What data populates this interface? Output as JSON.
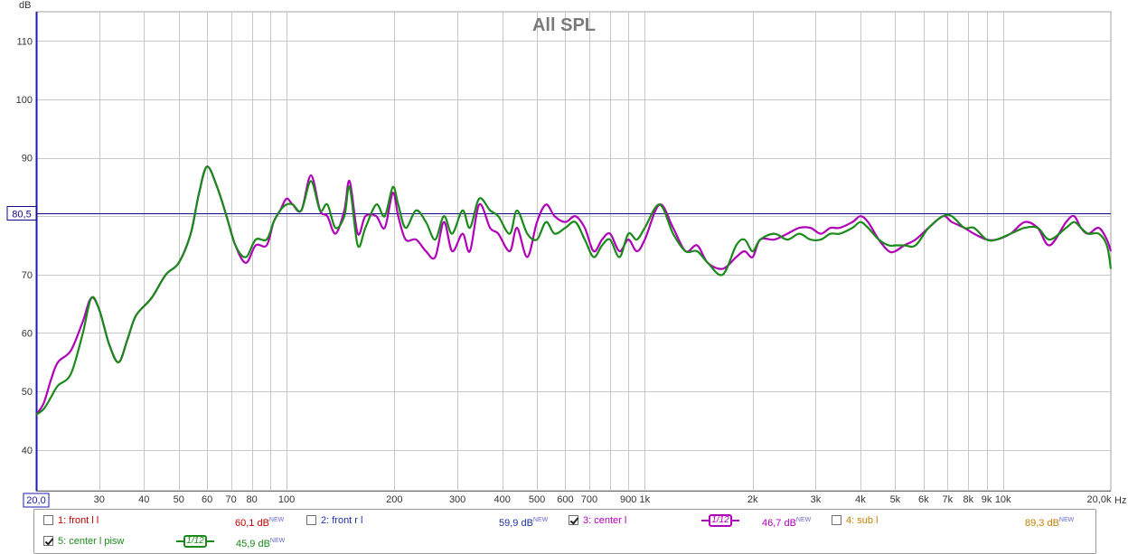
{
  "chart_data": {
    "type": "line",
    "title": "All SPL",
    "ylabel": "dB",
    "xunit": "Hz",
    "xscale": "log",
    "xlim": [
      20,
      20000
    ],
    "ylim": [
      33,
      115
    ],
    "grid": true,
    "y_ticks": [
      40,
      50,
      60,
      70,
      80,
      90,
      100,
      110
    ],
    "x_ticks": [
      {
        "v": 30,
        "l": "30"
      },
      {
        "v": 40,
        "l": "40"
      },
      {
        "v": 50,
        "l": "50"
      },
      {
        "v": 60,
        "l": "60"
      },
      {
        "v": 70,
        "l": "70"
      },
      {
        "v": 80,
        "l": "80"
      },
      {
        "v": 100,
        "l": "100"
      },
      {
        "v": 200,
        "l": "200"
      },
      {
        "v": 300,
        "l": "300"
      },
      {
        "v": 400,
        "l": "400"
      },
      {
        "v": 500,
        "l": "500"
      },
      {
        "v": 600,
        "l": "600"
      },
      {
        "v": 700,
        "l": "700"
      },
      {
        "v": 900,
        "l": "900"
      },
      {
        "v": 1000,
        "l": "1k"
      },
      {
        "v": 2000,
        "l": "2k"
      },
      {
        "v": 3000,
        "l": "3k"
      },
      {
        "v": 4000,
        "l": "4k"
      },
      {
        "v": 5000,
        "l": "5k"
      },
      {
        "v": 6000,
        "l": "6k"
      },
      {
        "v": 7000,
        "l": "7k"
      },
      {
        "v": 8000,
        "l": "8k"
      },
      {
        "v": 9000,
        "l": "9k"
      },
      {
        "v": 10000,
        "l": "10k"
      }
    ],
    "x_start_label": "20,0",
    "x_end_label": "20,0k",
    "x_unit_label": "Hz",
    "reference_level": 80.5,
    "reference_label": "80,5",
    "series": [
      {
        "name": "3: center l",
        "color": "#b000b8",
        "points": [
          [
            20,
            46
          ],
          [
            21,
            48
          ],
          [
            22,
            52
          ],
          [
            23,
            55
          ],
          [
            25,
            57
          ],
          [
            27,
            62
          ],
          [
            28.5,
            66
          ],
          [
            30,
            64
          ],
          [
            32,
            58
          ],
          [
            34,
            55
          ],
          [
            36,
            59
          ],
          [
            38,
            63
          ],
          [
            42,
            66
          ],
          [
            46,
            70
          ],
          [
            50,
            72
          ],
          [
            54,
            77
          ],
          [
            57,
            84
          ],
          [
            60,
            88.5
          ],
          [
            64,
            85
          ],
          [
            68,
            80
          ],
          [
            72,
            75
          ],
          [
            77,
            72
          ],
          [
            82,
            75
          ],
          [
            88,
            75
          ],
          [
            92,
            79
          ],
          [
            96,
            81
          ],
          [
            100,
            83
          ],
          [
            104,
            82
          ],
          [
            110,
            81
          ],
          [
            117,
            87
          ],
          [
            124,
            81
          ],
          [
            130,
            80
          ],
          [
            137,
            77
          ],
          [
            145,
            81
          ],
          [
            150,
            86
          ],
          [
            158,
            77
          ],
          [
            166,
            80
          ],
          [
            178,
            80
          ],
          [
            188,
            78
          ],
          [
            198,
            84
          ],
          [
            205,
            80
          ],
          [
            215,
            76
          ],
          [
            230,
            76
          ],
          [
            245,
            74
          ],
          [
            260,
            73
          ],
          [
            275,
            79
          ],
          [
            290,
            74
          ],
          [
            310,
            77
          ],
          [
            325,
            74
          ],
          [
            345,
            82
          ],
          [
            370,
            78
          ],
          [
            390,
            77
          ],
          [
            420,
            74
          ],
          [
            440,
            78
          ],
          [
            470,
            73
          ],
          [
            500,
            79
          ],
          [
            530,
            82
          ],
          [
            560,
            80
          ],
          [
            600,
            79
          ],
          [
            640,
            80
          ],
          [
            680,
            78
          ],
          [
            720,
            74
          ],
          [
            760,
            76
          ],
          [
            800,
            77
          ],
          [
            850,
            74
          ],
          [
            900,
            76
          ],
          [
            950,
            74
          ],
          [
            1000,
            76
          ],
          [
            1100,
            82
          ],
          [
            1200,
            78
          ],
          [
            1300,
            74
          ],
          [
            1400,
            75
          ],
          [
            1500,
            72
          ],
          [
            1650,
            71
          ],
          [
            1800,
            73
          ],
          [
            1900,
            74
          ],
          [
            2000,
            73
          ],
          [
            2100,
            76
          ],
          [
            2300,
            76
          ],
          [
            2500,
            77
          ],
          [
            2700,
            78
          ],
          [
            2900,
            78
          ],
          [
            3100,
            77
          ],
          [
            3300,
            78
          ],
          [
            3500,
            78
          ],
          [
            3800,
            79
          ],
          [
            4000,
            80
          ],
          [
            4200,
            79
          ],
          [
            4500,
            76
          ],
          [
            4800,
            74
          ],
          [
            5000,
            74
          ],
          [
            5300,
            75
          ],
          [
            5700,
            76
          ],
          [
            6200,
            78
          ],
          [
            6800,
            80
          ],
          [
            7200,
            79
          ],
          [
            7800,
            78
          ],
          [
            8300,
            77
          ],
          [
            9000,
            76
          ],
          [
            9600,
            76
          ],
          [
            10500,
            77
          ],
          [
            11500,
            79
          ],
          [
            12500,
            78
          ],
          [
            13500,
            75
          ],
          [
            15000,
            79
          ],
          [
            15800,
            80
          ],
          [
            16500,
            78
          ],
          [
            17300,
            77
          ],
          [
            18500,
            78
          ],
          [
            19500,
            76
          ],
          [
            20000,
            74
          ]
        ]
      },
      {
        "name": "5: center l pisw",
        "color": "#1a8a1a",
        "points": [
          [
            20,
            46
          ],
          [
            21,
            47
          ],
          [
            22,
            49
          ],
          [
            23,
            51
          ],
          [
            25,
            53
          ],
          [
            27,
            60
          ],
          [
            28.5,
            66
          ],
          [
            30,
            64
          ],
          [
            32,
            58
          ],
          [
            34,
            55
          ],
          [
            36,
            59
          ],
          [
            38,
            63
          ],
          [
            42,
            66
          ],
          [
            46,
            70
          ],
          [
            50,
            72
          ],
          [
            54,
            77
          ],
          [
            57,
            84
          ],
          [
            60,
            88.5
          ],
          [
            64,
            85
          ],
          [
            68,
            80
          ],
          [
            72,
            75
          ],
          [
            77,
            73
          ],
          [
            82,
            76
          ],
          [
            88,
            76
          ],
          [
            92,
            79
          ],
          [
            96,
            81
          ],
          [
            100,
            82
          ],
          [
            104,
            82
          ],
          [
            110,
            81
          ],
          [
            117,
            86
          ],
          [
            124,
            81
          ],
          [
            130,
            82
          ],
          [
            137,
            78
          ],
          [
            145,
            80
          ],
          [
            150,
            85
          ],
          [
            158,
            75
          ],
          [
            166,
            78
          ],
          [
            178,
            82
          ],
          [
            188,
            80
          ],
          [
            198,
            85
          ],
          [
            205,
            82
          ],
          [
            215,
            78
          ],
          [
            230,
            81
          ],
          [
            245,
            79
          ],
          [
            260,
            76
          ],
          [
            275,
            80
          ],
          [
            290,
            77
          ],
          [
            310,
            81
          ],
          [
            325,
            78
          ],
          [
            345,
            83
          ],
          [
            370,
            81
          ],
          [
            390,
            80
          ],
          [
            420,
            77
          ],
          [
            440,
            81
          ],
          [
            470,
            77
          ],
          [
            500,
            76
          ],
          [
            530,
            79
          ],
          [
            560,
            77
          ],
          [
            600,
            78
          ],
          [
            640,
            79
          ],
          [
            680,
            76
          ],
          [
            720,
            73
          ],
          [
            760,
            75
          ],
          [
            800,
            76
          ],
          [
            850,
            73
          ],
          [
            900,
            77
          ],
          [
            950,
            76
          ],
          [
            1000,
            78
          ],
          [
            1100,
            82
          ],
          [
            1200,
            77
          ],
          [
            1300,
            74
          ],
          [
            1400,
            74
          ],
          [
            1500,
            72
          ],
          [
            1650,
            70
          ],
          [
            1800,
            75
          ],
          [
            1900,
            76
          ],
          [
            2000,
            74
          ],
          [
            2100,
            76
          ],
          [
            2300,
            77
          ],
          [
            2500,
            76
          ],
          [
            2700,
            77
          ],
          [
            2900,
            76
          ],
          [
            3100,
            76
          ],
          [
            3300,
            77
          ],
          [
            3500,
            77
          ],
          [
            3800,
            78
          ],
          [
            4000,
            79
          ],
          [
            4200,
            78
          ],
          [
            4500,
            76
          ],
          [
            4800,
            75
          ],
          [
            5000,
            75
          ],
          [
            5300,
            75
          ],
          [
            5700,
            75
          ],
          [
            6200,
            78
          ],
          [
            6800,
            80
          ],
          [
            7200,
            80
          ],
          [
            7800,
            78
          ],
          [
            8300,
            78
          ],
          [
            9000,
            76
          ],
          [
            9600,
            76
          ],
          [
            10500,
            77
          ],
          [
            11500,
            78
          ],
          [
            12500,
            78
          ],
          [
            13500,
            76
          ],
          [
            15000,
            78
          ],
          [
            15800,
            79
          ],
          [
            16500,
            78
          ],
          [
            17300,
            77
          ],
          [
            18500,
            77
          ],
          [
            19500,
            75
          ],
          [
            20000,
            71
          ]
        ]
      }
    ]
  },
  "legend": {
    "items": [
      {
        "checked": false,
        "label": "1: front l l",
        "value": "60,1 dB",
        "sup": "NEW",
        "color": "#c00000"
      },
      {
        "checked": false,
        "label": "2: front r l",
        "value": "59,9 dB",
        "sup": "NEW",
        "color": "#2030a0"
      },
      {
        "checked": true,
        "label": "3: center l",
        "value": "46,7 dB",
        "sup": "NEW",
        "color": "#b000b8",
        "smoothing": "1/12"
      },
      {
        "checked": false,
        "label": "4: sub l",
        "value": "89,3 dB",
        "sup": "NEW",
        "color": "#c08000"
      },
      {
        "checked": true,
        "label": "5: center l pisw",
        "value": "45,9 dB",
        "sup": "NEW",
        "color": "#1a8a1a",
        "smoothing": "1/12"
      }
    ]
  },
  "colors": {
    "grid": "#c8c8c8",
    "axis": "#1a1ab0",
    "reference": "#0b0b8c",
    "title": "#7a7a7a"
  }
}
